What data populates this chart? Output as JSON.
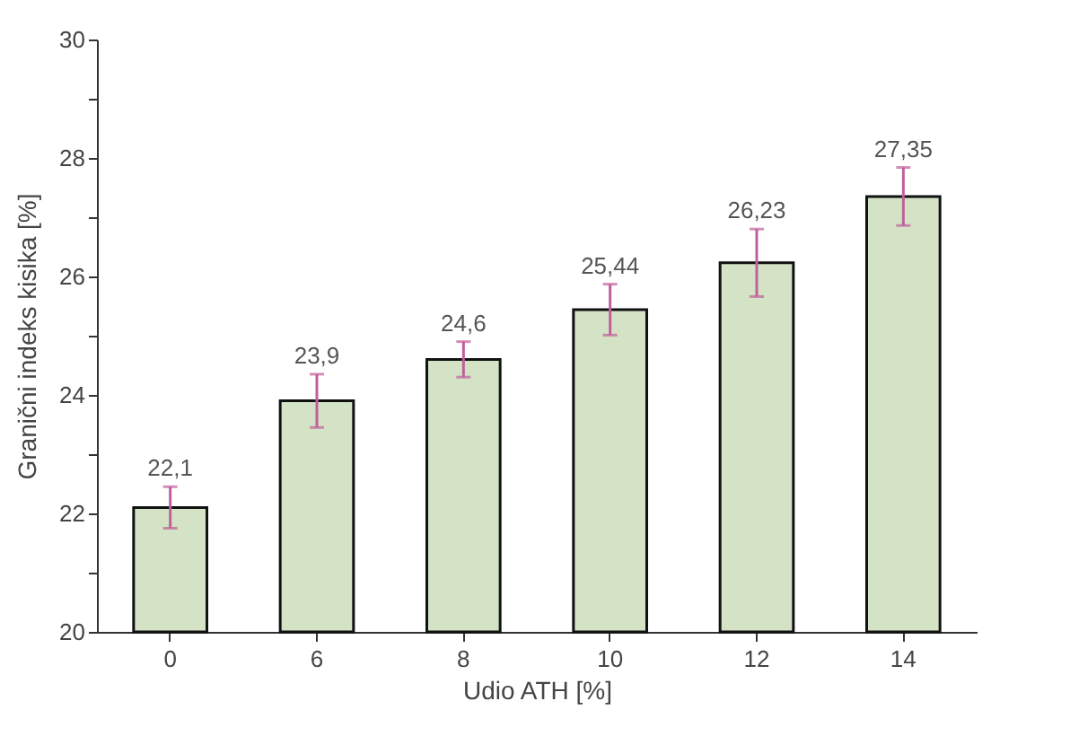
{
  "chart_data": {
    "type": "bar",
    "xlabel": "Udio ATH [%]",
    "ylabel": "Granični indeks kisika [%]",
    "categories": [
      "0",
      "6",
      "8",
      "10",
      "12",
      "14"
    ],
    "values": [
      22.1,
      23.9,
      24.6,
      25.44,
      26.23,
      27.35
    ],
    "value_labels": [
      "22,1",
      "23,9",
      "24,6",
      "25,44",
      "26,23",
      "27,35"
    ],
    "errors": [
      0.35,
      0.45,
      0.3,
      0.43,
      0.57,
      0.49
    ],
    "color": "#d4e3c6",
    "ylim": [
      20,
      30
    ],
    "yticks": [
      20,
      {
        "value": 21,
        "label": null
      },
      22,
      {
        "value": 23,
        "label": null
      },
      24,
      {
        "value": 25,
        "label": null
      },
      26,
      {
        "value": 27,
        "label": null
      },
      28,
      {
        "value": 29,
        "label": null
      },
      30
    ],
    "grid": false
  }
}
